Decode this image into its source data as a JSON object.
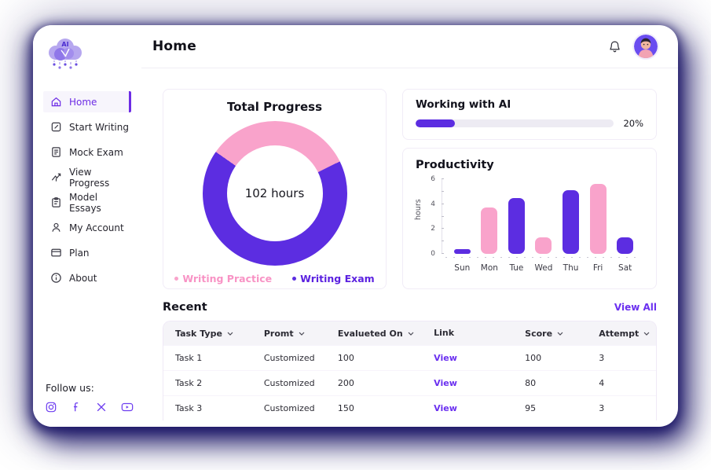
{
  "header": {
    "title": "Home"
  },
  "sidebar": {
    "logo_name": "ai-cloud-logo",
    "items": [
      {
        "label": "Home",
        "icon": "home-icon",
        "active": true
      },
      {
        "label": "Start Writing",
        "icon": "edit-icon",
        "active": false
      },
      {
        "label": "Mock Exam",
        "icon": "document-icon",
        "active": false
      },
      {
        "label": "View Progress",
        "icon": "trend-up-icon",
        "active": false
      },
      {
        "label": "Model Essays",
        "icon": "clipboard-icon",
        "active": false
      },
      {
        "label": "My Account",
        "icon": "user-icon",
        "active": false
      },
      {
        "label": "Plan",
        "icon": "card-icon",
        "active": false
      },
      {
        "label": "About",
        "icon": "info-icon",
        "active": false
      }
    ],
    "follow": {
      "label": "Follow us:",
      "icons": [
        "instagram-icon",
        "facebook-icon",
        "x-icon",
        "youtube-icon"
      ]
    }
  },
  "cards": {
    "total_progress": {
      "title": "Total Progress",
      "center_label": "102 hours",
      "legend": [
        {
          "label": "Writing Practice",
          "color": "#f9a3cb",
          "text_color": "#f893c5"
        },
        {
          "label": "Writing Exam",
          "color": "#5c2de1",
          "text_color": "#5b21e0"
        }
      ]
    },
    "working_with_ai": {
      "title": "Working with AI",
      "percent": 20,
      "percent_label": "20%"
    },
    "productivity": {
      "title": "Productivity"
    }
  },
  "recent": {
    "title": "Recent",
    "view_all": "View All",
    "columns": [
      {
        "label": "Task Type",
        "sortable": true
      },
      {
        "label": "Promt",
        "sortable": true
      },
      {
        "label": "Evalueted On",
        "sortable": true
      },
      {
        "label": "Link",
        "sortable": false
      },
      {
        "label": "Score",
        "sortable": true
      },
      {
        "label": "Attempt",
        "sortable": true
      }
    ],
    "rows": [
      [
        "Task 1",
        "Customized",
        "100",
        "View",
        "100",
        "3"
      ],
      [
        "Task 2",
        "Customized",
        "200",
        "View",
        "80",
        "4"
      ],
      [
        "Task 3",
        "Customized",
        "150",
        "View",
        "95",
        "3"
      ]
    ]
  },
  "chart_data": [
    {
      "type": "pie",
      "donut": true,
      "title": "Total Progress",
      "labels": [
        "Writing Practice",
        "Writing Exam"
      ],
      "values": [
        33,
        67
      ],
      "unit": "percent",
      "colors": [
        "#f9a3cb",
        "#5c2de1"
      ],
      "label_colors": [
        "#f893c5",
        "#5b21e0"
      ],
      "start_angle_deg": 305,
      "center_label": "102 hours",
      "legend_position": "bottom"
    },
    {
      "type": "bar",
      "title": "Productivity",
      "categories": [
        "Sun",
        "Mon",
        "Tue",
        "Wed",
        "Thu",
        "Fri",
        "Sat"
      ],
      "values": [
        0.4,
        3.7,
        4.5,
        1.3,
        5.1,
        5.6,
        1.3
      ],
      "colors": [
        "#5c2de1",
        "#f9a3cb",
        "#5c2de1",
        "#f9a3cb",
        "#5c2de1",
        "#f9a3cb",
        "#5c2de1"
      ],
      "xlabel": "",
      "ylabel": "hours",
      "ylim": [
        0,
        6
      ],
      "yticks": [
        0,
        2,
        4,
        6
      ],
      "grid": false
    }
  ],
  "colors": {
    "primary": "#5c2de1",
    "pink": "#f9a3cb",
    "link": "#6b30f0",
    "active_nav": "#6d2ce5",
    "shadow_navy": "#1b1666"
  }
}
